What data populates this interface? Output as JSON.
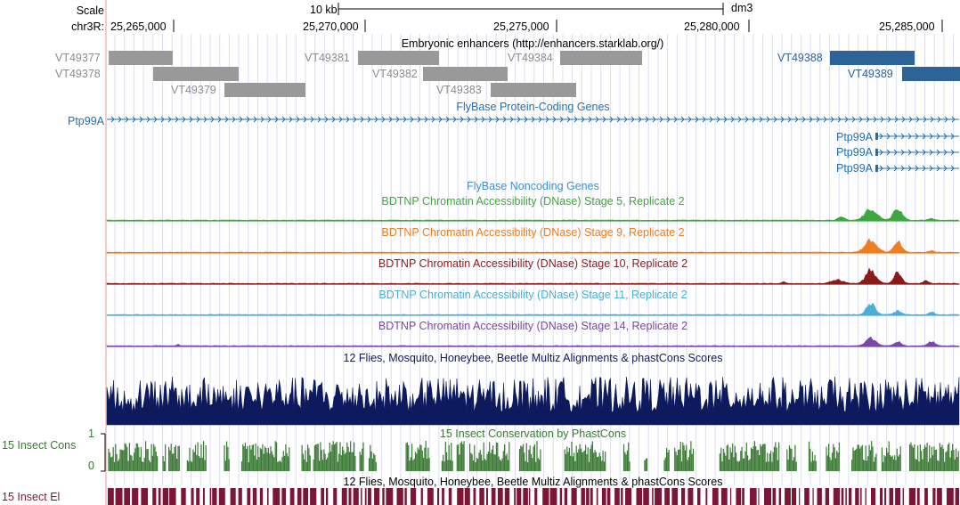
{
  "ruler": {
    "scale_label": "Scale",
    "scale_value": "10 kb",
    "assembly": "dm3",
    "chrom_label": "chr3R:",
    "ticks": [
      "25,265,000",
      "25,270,000",
      "25,275,000",
      "25,280,000",
      "25,285,000"
    ]
  },
  "enhancers": {
    "title": "Embryonic enhancers (http://enhancers.starklab.org/)",
    "gray_color": "#999999",
    "blue_color": "#2d6497",
    "items": [
      {
        "name": "VT49377"
      },
      {
        "name": "VT49378"
      },
      {
        "name": "VT49379"
      },
      {
        "name": "VT49381"
      },
      {
        "name": "VT49382"
      },
      {
        "name": "VT49383"
      },
      {
        "name": "VT49384"
      },
      {
        "name": "VT49388"
      },
      {
        "name": "VT49389"
      }
    ]
  },
  "protein_coding": {
    "title": "FlyBase Protein-Coding Genes",
    "color": "#1f6fb0",
    "genes": [
      {
        "name": "Ptp99A"
      },
      {
        "name": "Ptp99A"
      },
      {
        "name": "Ptp99A"
      },
      {
        "name": "Ptp99A"
      }
    ]
  },
  "noncoding": {
    "title": "FlyBase Noncoding Genes",
    "color": "#3e8fd1"
  },
  "dnase_tracks": [
    {
      "title": "BDTNP Chromatin Accessibility (DNase) Stage 5, Replicate 2",
      "color": "#3da83d"
    },
    {
      "title": "BDTNP Chromatin Accessibility (DNase) Stage 9, Replicate 2",
      "color": "#ef7d22"
    },
    {
      "title": "BDTNP Chromatin Accessibility (DNase) Stage 10, Replicate 2",
      "color": "#8b1a1a"
    },
    {
      "title": "BDTNP Chromatin Accessibility (DNase) Stage 11, Replicate 2",
      "color": "#4aaed6"
    },
    {
      "title": "BDTNP Chromatin Accessibility (DNase) Stage 14, Replicate 2",
      "color": "#7b46a8"
    }
  ],
  "multiz": {
    "title": "12 Flies, Mosquito, Honeybee, Beetle Multiz Alignments & phastCons Scores",
    "color": "#0d1a5e"
  },
  "insect_cons": {
    "title": "15 Insect Conservation by PhastCons",
    "label": "15 Insect Cons",
    "max_label": "1",
    "min_label": "0",
    "color": "#3a7a33"
  },
  "insect_el": {
    "title": "12 Flies, Mosquito, Honeybee, Beetle Multiz Alignments & phastCons Scores",
    "label": "15 Insect El",
    "color": "#7b1634"
  }
}
